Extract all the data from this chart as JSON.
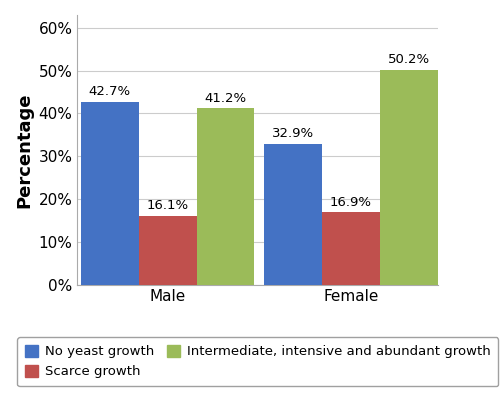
{
  "categories": [
    "Male",
    "Female"
  ],
  "series": [
    {
      "label": "No yeast growth",
      "values": [
        42.7,
        32.9
      ],
      "color": "#4472C4"
    },
    {
      "label": "Scarce growth",
      "values": [
        16.1,
        16.9
      ],
      "color": "#C0504D"
    },
    {
      "label": "Intermediate, intensive and abundant growth",
      "values": [
        41.2,
        50.2
      ],
      "color": "#9BBB59"
    }
  ],
  "ylabel": "Percentage",
  "ylim": [
    0,
    63
  ],
  "yticks": [
    0,
    10,
    20,
    30,
    40,
    50,
    60
  ],
  "ytick_labels": [
    "0%",
    "10%",
    "20%",
    "30%",
    "40%",
    "50%",
    "60%"
  ],
  "bar_width": 0.18,
  "background_color": "#ffffff",
  "grid_color": "#cccccc",
  "label_fontsize": 9.5,
  "axis_label_fontsize": 13,
  "tick_fontsize": 11,
  "legend_fontsize": 9.5
}
